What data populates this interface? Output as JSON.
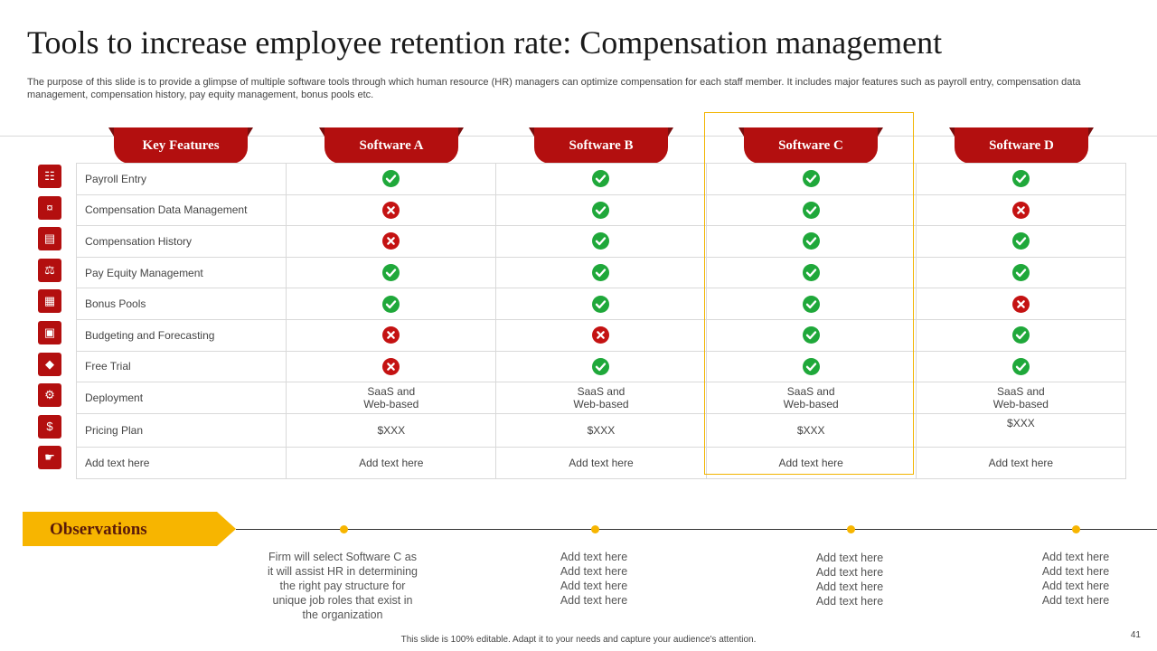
{
  "title": "Tools to increase employee retention rate: Compensation management",
  "subtitle": "The purpose of this slide is to provide a glimpse of multiple software tools through which human resource (HR) managers can optimize compensation for each staff member. It includes major features such as payroll entry, compensation data management, compensation history, pay equity management, bonus pools etc.",
  "headers": [
    "Key Features",
    "Software A",
    "Software B",
    "Software C",
    "Software D"
  ],
  "rows": [
    {
      "feature": "Payroll Entry",
      "icon": "document-icon",
      "cells": [
        "yes",
        "yes",
        "yes",
        "yes"
      ]
    },
    {
      "feature": "Compensation Data Management",
      "icon": "cash-icon",
      "cells": [
        "no",
        "yes",
        "yes",
        "no"
      ]
    },
    {
      "feature": "Compensation History",
      "icon": "history-icon",
      "cells": [
        "no",
        "yes",
        "yes",
        "yes"
      ]
    },
    {
      "feature": "Pay Equity Management",
      "icon": "scale-icon",
      "cells": [
        "yes",
        "yes",
        "yes",
        "yes"
      ]
    },
    {
      "feature": "Bonus Pools",
      "icon": "gift-icon",
      "cells": [
        "yes",
        "yes",
        "yes",
        "no"
      ]
    },
    {
      "feature": "Budgeting and Forecasting",
      "icon": "budget-icon",
      "cells": [
        "no",
        "no",
        "yes",
        "yes"
      ]
    },
    {
      "feature": "Free Trial",
      "icon": "tag-icon",
      "cells": [
        "no",
        "yes",
        "yes",
        "yes"
      ]
    }
  ],
  "deployment": {
    "feature": "Deployment",
    "icon": "gear-icon",
    "line1": "SaaS and",
    "line2": "Web-based"
  },
  "pricing": {
    "feature": "Pricing Plan",
    "icon": "price-icon",
    "values": [
      "$XXX",
      "$XXX",
      "$XXX",
      "$XXX"
    ]
  },
  "extra": {
    "feature": "Add text here",
    "icon": "hand-icon",
    "values": [
      "Add text here",
      "Add text here",
      "Add text here",
      "Add text here"
    ]
  },
  "observations": {
    "label": "Observations",
    "items": [
      [
        "Firm will select Software  C as",
        "it will assist HR in determining",
        "the right pay structure for",
        "unique job roles that exist in",
        "the organization"
      ],
      [
        "Add text here",
        "Add text here",
        "Add text here",
        "Add text here"
      ],
      [
        "Add text here",
        "Add text here",
        "Add text here",
        "Add text here"
      ],
      [
        "Add text here",
        "Add text here",
        "Add text here",
        "Add text here"
      ]
    ]
  },
  "page_number": "41",
  "footer": "This slide is 100% editable.  Adapt it to your needs and capture your audience's attention.",
  "colors": {
    "header_red": "#b30f0f",
    "check_green": "#1fa83a",
    "cross_red": "#c41212",
    "accent_yellow": "#f7b500"
  }
}
